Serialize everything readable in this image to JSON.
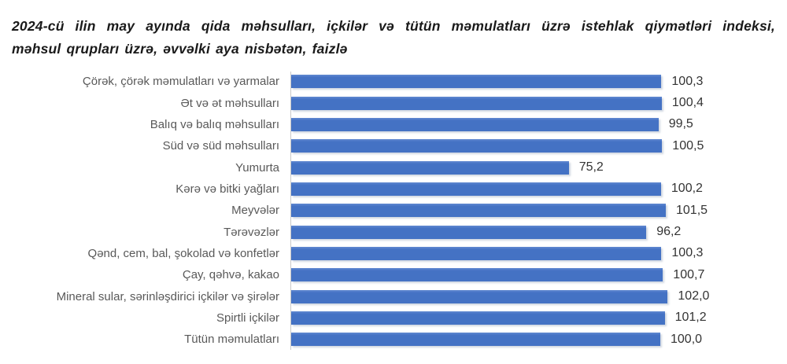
{
  "title": {
    "line1": "2024-cü ilin may ayında qida məhsulları, içkilər və tütün məmulatları üzrə istehlak qiymətləri indeksi,",
    "line2": "məhsul qrupları üzrə, əvvəlki aya nisbətən, faizlə"
  },
  "colors": {
    "bar": "#4472C4",
    "axis_line": "#C9C9C9",
    "category_label": "#595959",
    "value_label": "#333333",
    "title_text": "#1A1A1A",
    "background": "#FFFFFF"
  },
  "chart_data": {
    "type": "bar",
    "orientation": "horizontal",
    "title": "2024-cü ilin may ayında qida məhsulları, içkilər və tütün məmulatları üzrə istehlak qiymətləri indeksi, məhsul qrupları üzrə, əvvəlki aya nisbətən, faizlə",
    "categories": [
      "Çörək, çörək məmulatları  və yarmalar",
      "Ət və ət məhsulları",
      "Balıq və balıq məhsulları",
      "Süd və süd məhsulları",
      "Yumurta",
      "Kərə və bitki yağları",
      "Meyvələr",
      "Tərəvəzlər",
      "Qənd, cem, bal, şokolad və konfetlər",
      "Çay, qəhvə, kakao",
      "Mineral sular, sərinləşdirici içkilər və şirələr",
      "Spirtli içkilər",
      "Tütün məmulatları"
    ],
    "values": [
      100.3,
      100.4,
      99.5,
      100.5,
      75.2,
      100.2,
      101.5,
      96.2,
      100.3,
      100.7,
      102.0,
      101.2,
      100.0
    ],
    "value_labels": [
      "100,3",
      "100,4",
      "99,5",
      "100,5",
      "75,2",
      "100,2",
      "101,5",
      "96,2",
      "100,3",
      "100,7",
      "102,0",
      "101,2",
      "100,0"
    ],
    "xlabel": "",
    "ylabel": "",
    "xlim": [
      0,
      120
    ],
    "grid": false,
    "legend": false,
    "data_labels": true
  }
}
